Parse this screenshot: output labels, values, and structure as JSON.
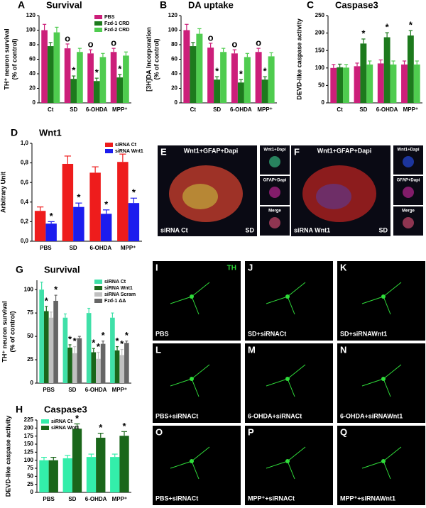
{
  "chart_data": [
    {
      "type": "bar",
      "panel": "A",
      "title": "Survival",
      "ylabel": [
        "TH⁺ neuron survival",
        "(% of control)"
      ],
      "categories": [
        "Ct",
        "SD",
        "6-OHDA",
        "MPP⁺"
      ],
      "ylim": [
        0,
        120
      ],
      "yticks": [
        0,
        20,
        40,
        60,
        80,
        100,
        120
      ],
      "legend": "upper right",
      "series": [
        {
          "name": "PBS",
          "color": "#cc1f7a",
          "values": [
            100,
            75,
            68,
            70
          ],
          "errors": [
            8,
            6,
            5,
            5
          ],
          "significance": [
            null,
            "o",
            "o",
            "o"
          ]
        },
        {
          "name": "Fzd-1 CRD",
          "color": "#1d7a1d",
          "values": [
            78,
            33,
            30,
            35
          ],
          "errors": [
            5,
            4,
            4,
            4
          ],
          "significance": [
            null,
            "*",
            "*",
            "*"
          ]
        },
        {
          "name": "Fzd-2 CRD",
          "color": "#4fcc4f",
          "values": [
            97,
            70,
            63,
            65
          ],
          "errors": [
            7,
            5,
            5,
            5
          ]
        }
      ]
    },
    {
      "type": "bar",
      "panel": "B",
      "title": "DA uptake",
      "ylabel": [
        "[3H]DA Incorporation",
        "(% of control)"
      ],
      "categories": [
        "Ct",
        "SD",
        "6-OHDA",
        "MPP⁺"
      ],
      "ylim": [
        0,
        120
      ],
      "yticks": [
        0,
        20,
        40,
        60,
        80,
        100,
        120
      ],
      "series": [
        {
          "color": "#cc1f7a",
          "values": [
            100,
            76,
            68,
            70
          ],
          "errors": [
            8,
            6,
            5,
            5
          ],
          "significance": [
            null,
            "o",
            "o",
            "o"
          ]
        },
        {
          "color": "#1d7a1d",
          "values": [
            78,
            32,
            28,
            32
          ],
          "errors": [
            5,
            4,
            4,
            4
          ],
          "significance": [
            null,
            "*",
            "*",
            "*"
          ]
        },
        {
          "color": "#4fcc4f",
          "values": [
            95,
            70,
            63,
            64
          ],
          "errors": [
            7,
            5,
            5,
            5
          ]
        }
      ]
    },
    {
      "type": "bar",
      "panel": "C",
      "title": "Caspase3",
      "ylabel": [
        "DEVD-like caspase activity"
      ],
      "categories": [
        "Ct",
        "SD",
        "6-OHDA",
        "MPP⁺"
      ],
      "ylim": [
        0,
        250
      ],
      "yticks": [
        0,
        50,
        100,
        150,
        200,
        250
      ],
      "series": [
        {
          "color": "#cc1f7a",
          "values": [
            100,
            105,
            113,
            110
          ],
          "errors": [
            10,
            9,
            10,
            10
          ]
        },
        {
          "color": "#1d7a1d",
          "values": [
            102,
            170,
            188,
            193
          ],
          "errors": [
            9,
            13,
            13,
            14
          ],
          "significance": [
            null,
            "*",
            "*",
            "*"
          ]
        },
        {
          "color": "#4fcc4f",
          "values": [
            101,
            110,
            110,
            110
          ],
          "errors": [
            9,
            10,
            10,
            10
          ]
        }
      ]
    },
    {
      "type": "bar",
      "panel": "D",
      "title": "Wnt1",
      "ylabel": [
        "Arbitrary Unit"
      ],
      "categories": [
        "PBS",
        "SD",
        "6-OHDA",
        "MPP⁺"
      ],
      "ylim": [
        0,
        1.0
      ],
      "yticks": [
        {
          "value": 0,
          "label": "0,0"
        },
        {
          "value": 0.2,
          "label": "0,2"
        },
        {
          "value": 0.4,
          "label": "0,4"
        },
        {
          "value": 0.6,
          "label": "0,6"
        },
        {
          "value": 0.8,
          "label": "0,8"
        },
        {
          "value": 1.0,
          "label": "1,0"
        }
      ],
      "legend": "upper right",
      "series": [
        {
          "name": "siRNA Ct",
          "color": "#ee1c1c",
          "values": [
            0.31,
            0.79,
            0.7,
            0.81
          ],
          "errors": [
            0.04,
            0.08,
            0.06,
            0.08
          ]
        },
        {
          "name": "siRNA Wnt1",
          "color": "#1c1cee",
          "values": [
            0.18,
            0.35,
            0.28,
            0.39
          ],
          "errors": [
            0.02,
            0.04,
            0.04,
            0.05
          ],
          "significance": [
            "*",
            "*",
            "*",
            "*"
          ]
        }
      ]
    },
    {
      "type": "bar",
      "panel": "G",
      "title": "Survival",
      "ylabel": [
        "TH⁺ neuron survival",
        "(% of control)"
      ],
      "categories": [
        "PBS",
        "SD",
        "6-OHDA",
        "MPP⁺"
      ],
      "ylim": [
        0,
        110
      ],
      "yticks": [
        0,
        25,
        50,
        75,
        100
      ],
      "legend": "upper right",
      "series": [
        {
          "name": "siRNA Ct",
          "color": "#3fe0a8",
          "values": [
            100,
            70,
            75,
            70
          ],
          "errors": [
            8,
            4,
            5,
            5
          ]
        },
        {
          "name": "siRNA Wnt1",
          "color": "#1a661a",
          "values": [
            77,
            38,
            33,
            35
          ],
          "errors": [
            5,
            3,
            4,
            4
          ],
          "significance": [
            "*",
            "*",
            "*",
            "*"
          ]
        },
        {
          "name": "siRNA Scram",
          "color": "#c0c0c0",
          "values": [
            70,
            32,
            26,
            30
          ],
          "errors": [
            6,
            7,
            7,
            6
          ],
          "significance": [
            null,
            "*",
            "*",
            "*"
          ]
        },
        {
          "name": "Fzd-1 ΔΔ",
          "color": "#666666",
          "values": [
            88,
            48,
            42,
            43
          ],
          "errors": [
            6,
            2,
            3,
            2
          ],
          "significance": [
            "*",
            null,
            "*",
            "*"
          ]
        }
      ]
    },
    {
      "type": "bar",
      "panel": "H",
      "title": "Caspase3",
      "ylabel": [
        "DEVD-like caspase activity"
      ],
      "categories": [
        "PBS",
        "SD",
        "6-OHDA",
        "MPP⁺"
      ],
      "ylim": [
        0,
        225
      ],
      "yticks": [
        0,
        25,
        50,
        75,
        100,
        125,
        150,
        175,
        200,
        225
      ],
      "legend": "upper left",
      "series": [
        {
          "name": "siRNA Ct",
          "color": "#33eeaa",
          "values": [
            100,
            106,
            110,
            110
          ],
          "errors": [
            9,
            9,
            9,
            9
          ]
        },
        {
          "name": "siRNA Wnt1",
          "color": "#1a661a",
          "values": [
            100,
            198,
            170,
            176
          ],
          "errors": [
            9,
            15,
            14,
            13
          ],
          "significance": [
            null,
            "*",
            "*",
            "*"
          ]
        }
      ]
    }
  ],
  "images": [
    {
      "letter": "E",
      "title": "Wnt1+GFAP+Dapi",
      "caption": "siRNA Ct",
      "condition": "SD",
      "insets": [
        "Wnt1+Dapi",
        "GFAP+Dapi",
        "Merge"
      ]
    },
    {
      "letter": "F",
      "title": "Wnt1+GFAP+Dapi",
      "caption": "siRNA Wnt1",
      "condition": "SD",
      "insets": [
        "Wnt1+Dapi",
        "GFAP+Dapi",
        "Merge"
      ]
    },
    {
      "letter": "I",
      "label": "PBS",
      "marker": "TH"
    },
    {
      "letter": "J",
      "label": "SD+siRNACt"
    },
    {
      "letter": "K",
      "label": "SD+siRNAWnt1"
    },
    {
      "letter": "L",
      "label": "PBS+siRNACt"
    },
    {
      "letter": "M",
      "label": "6-OHDA+siRNACt"
    },
    {
      "letter": "N",
      "label": "6-OHDA+siRNAWnt1"
    },
    {
      "letter": "O",
      "label": "PBS+siRNACt"
    },
    {
      "letter": "P",
      "label": "MPP⁺+siRNACt"
    },
    {
      "letter": "Q",
      "label": "MPP⁺+siRNAWnt1"
    }
  ]
}
